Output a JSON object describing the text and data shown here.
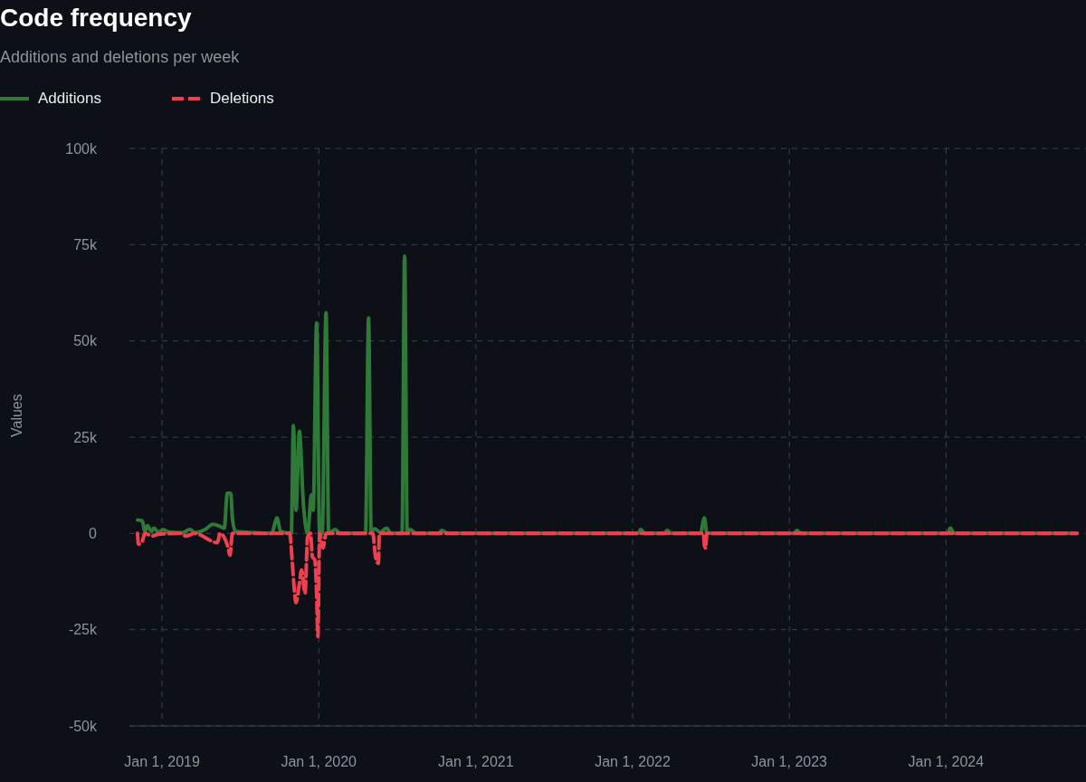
{
  "chart_data": {
    "type": "line",
    "title": "Code frequency",
    "subtitle": "Additions and deletions per week",
    "ylabel": "Values",
    "xlim": [
      "2018-10-17",
      "2024-11-22"
    ],
    "xticks": [
      {
        "value": "2019-01-01",
        "label": "Jan 1, 2019"
      },
      {
        "value": "2020-01-01",
        "label": "Jan 1, 2020"
      },
      {
        "value": "2021-01-01",
        "label": "Jan 1, 2021"
      },
      {
        "value": "2022-01-01",
        "label": "Jan 1, 2022"
      },
      {
        "value": "2023-01-01",
        "label": "Jan 1, 2023"
      },
      {
        "value": "2024-01-01",
        "label": "Jan 1, 2024"
      }
    ],
    "ylim": [
      -50000,
      100000
    ],
    "yticks": [
      {
        "value": -50000,
        "label": "-50k"
      },
      {
        "value": -25000,
        "label": "-25k"
      },
      {
        "value": 0,
        "label": "0"
      },
      {
        "value": 25000,
        "label": "25k"
      },
      {
        "value": 50000,
        "label": "50k"
      },
      {
        "value": 75000,
        "label": "75k"
      },
      {
        "value": 100000,
        "label": "100k"
      }
    ],
    "grid": true,
    "legend": "top left",
    "marker": "none",
    "series": [
      {
        "name": "Additions",
        "color": "#2f7a38",
        "line_style": "solid",
        "x": [
          "2018-11-05",
          "2018-11-16",
          "2018-11-22",
          "2018-11-28",
          "2018-12-07",
          "2018-12-13",
          "2018-12-24",
          "2019-01-03",
          "2019-01-16",
          "2019-02-18",
          "2019-03-07",
          "2019-03-18",
          "2019-04-14",
          "2019-04-29",
          "2019-05-16",
          "2019-05-26",
          "2019-06-02",
          "2019-06-10",
          "2019-06-14",
          "2019-06-21",
          "2019-08-02",
          "2019-09-13",
          "2019-09-26",
          "2019-10-04",
          "2019-10-29",
          "2019-11-03",
          "2019-11-09",
          "2019-11-17",
          "2019-11-26",
          "2019-12-06",
          "2019-12-15",
          "2019-12-19",
          "2019-12-27",
          "2020-01-03",
          "2020-01-09",
          "2020-01-18",
          "2020-01-24",
          "2020-02-08",
          "2020-02-20",
          "2020-04-19",
          "2020-04-26",
          "2020-05-02",
          "2020-05-10",
          "2020-05-23",
          "2020-06-07",
          "2020-06-17",
          "2020-07-13",
          "2020-07-19",
          "2020-07-25",
          "2020-08-01",
          "2020-08-15",
          "2020-10-07",
          "2020-10-13",
          "2020-10-28",
          "2022-01-14",
          "2022-01-20",
          "2022-01-29",
          "2022-03-16",
          "2022-03-22",
          "2022-04-02",
          "2022-06-08",
          "2022-06-17",
          "2022-06-23",
          "2023-01-12",
          "2023-01-18",
          "2023-01-28",
          "2024-01-05",
          "2024-01-11",
          "2024-01-20",
          "2024-11-01"
        ],
        "values": [
          3500,
          3300,
          500,
          2000,
          500,
          1400,
          200,
          1000,
          400,
          200,
          1000,
          200,
          1200,
          2400,
          1800,
          1400,
          10400,
          10400,
          3800,
          500,
          200,
          0,
          4000,
          500,
          0,
          28000,
          6000,
          26500,
          8000,
          0,
          10000,
          6000,
          54700,
          0,
          0,
          57300,
          0,
          1000,
          0,
          0,
          56000,
          300,
          1200,
          300,
          1400,
          0,
          0,
          72000,
          0,
          1000,
          0,
          0,
          800,
          0,
          0,
          1000,
          0,
          0,
          800,
          0,
          0,
          4000,
          0,
          0,
          800,
          0,
          0,
          1400,
          0,
          0
        ]
      },
      {
        "name": "Deletions",
        "color": "#f0404f",
        "line_style": "dashed",
        "x": [
          "2018-11-05",
          "2018-11-07",
          "2018-11-16",
          "2018-11-22",
          "2018-12-09",
          "2018-12-24",
          "2019-02-14",
          "2019-02-25",
          "2019-03-18",
          "2019-05-10",
          "2019-05-16",
          "2019-06-04",
          "2019-06-08",
          "2019-06-14",
          "2019-10-25",
          "2019-11-01",
          "2019-11-05",
          "2019-11-09",
          "2019-11-17",
          "2019-11-22",
          "2019-11-30",
          "2019-12-06",
          "2019-12-13",
          "2019-12-17",
          "2019-12-23",
          "2019-12-27",
          "2019-12-30",
          "2020-01-03",
          "2020-01-11",
          "2020-01-18",
          "2020-05-06",
          "2020-05-12",
          "2020-05-19",
          "2020-05-21",
          "2022-06-15",
          "2022-06-17",
          "2022-06-20",
          "2022-06-23",
          "2024-11-01"
        ],
        "values": [
          0,
          -2800,
          -2000,
          0,
          -700,
          -200,
          0,
          -700,
          0,
          -2400,
          0,
          -3800,
          -5700,
          0,
          0,
          -8500,
          -14500,
          -18000,
          -13000,
          -9500,
          -15600,
          -1000,
          0,
          -6000,
          -7000,
          -15600,
          -26800,
          0,
          -3800,
          0,
          0,
          -6000,
          -7800,
          0,
          0,
          -3000,
          -3800,
          0,
          0
        ]
      }
    ]
  }
}
